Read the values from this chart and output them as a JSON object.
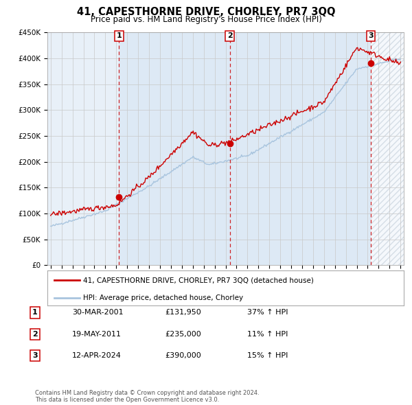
{
  "title": "41, CAPESTHORNE DRIVE, CHORLEY, PR7 3QQ",
  "subtitle": "Price paid vs. HM Land Registry's House Price Index (HPI)",
  "ylim": [
    0,
    450000
  ],
  "yticks": [
    0,
    50000,
    100000,
    150000,
    200000,
    250000,
    300000,
    350000,
    400000,
    450000
  ],
  "ytick_labels": [
    "£0",
    "£50K",
    "£100K",
    "£150K",
    "£200K",
    "£250K",
    "£300K",
    "£350K",
    "£400K",
    "£450K"
  ],
  "x_start_year": 1995,
  "x_end_year": 2027,
  "hpi_color": "#a8c4de",
  "hpi_fill_color": "#dce9f5",
  "price_color": "#cc0000",
  "grid_color": "#c8c8c8",
  "bg_color": "#ffffff",
  "plot_bg_color": "#e8f0f8",
  "hatch_color": "#c0ccd8",
  "legend_line_red": "41, CAPESTHORNE DRIVE, CHORLEY, PR7 3QQ (detached house)",
  "legend_line_blue": "HPI: Average price, detached house, Chorley",
  "sales": [
    {
      "num": 1,
      "year": 2001.25,
      "price": 131950
    },
    {
      "num": 2,
      "year": 2011.38,
      "price": 235000
    },
    {
      "num": 3,
      "year": 2024.28,
      "price": 390000
    }
  ],
  "footer": "Contains HM Land Registry data © Crown copyright and database right 2024.\nThis data is licensed under the Open Government Licence v3.0.",
  "table_rows": [
    {
      "num": 1,
      "date": "30-MAR-2001",
      "price": "£131,950",
      "hpi": "37% ↑ HPI"
    },
    {
      "num": 2,
      "date": "19-MAY-2011",
      "price": "£235,000",
      "hpi": "11% ↑ HPI"
    },
    {
      "num": 3,
      "date": "12-APR-2024",
      "price": "£390,000",
      "hpi": "15% ↑ HPI"
    }
  ]
}
